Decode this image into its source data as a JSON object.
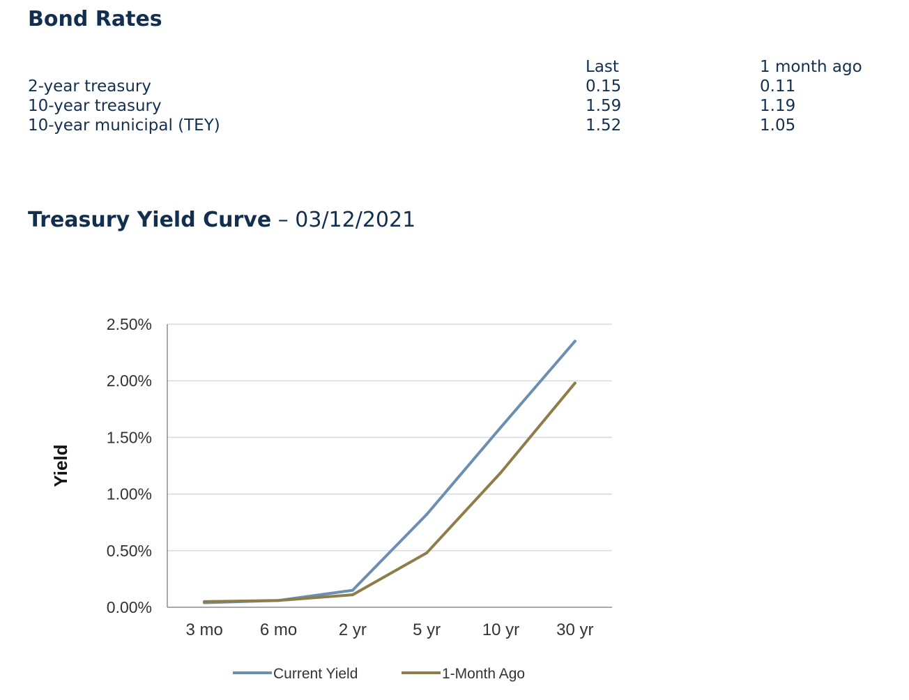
{
  "bond_rates": {
    "title": "Bond Rates",
    "headers": {
      "last": "Last",
      "ago": "1 month ago"
    },
    "rows": [
      {
        "name": "2-year treasury",
        "last": "0.15",
        "ago": "0.11"
      },
      {
        "name": "10-year treasury",
        "last": "1.59",
        "ago": "1.19"
      },
      {
        "name": "10-year municipal (TEY)",
        "last": "1.52",
        "ago": "1.05"
      }
    ]
  },
  "yield_curve": {
    "title": "Treasury Yield Curve",
    "date_text": " – 03/12/2021"
  },
  "chart_data": {
    "type": "line",
    "categories": [
      "3 mo",
      "6 mo",
      "2 yr",
      "5 yr",
      "10 yr",
      "30 yr"
    ],
    "series": [
      {
        "name": "Current Yield",
        "color": "#6b8fb3",
        "values": [
          0.04,
          0.06,
          0.15,
          0.82,
          1.59,
          2.35
        ]
      },
      {
        "name": "1-Month Ago",
        "color": "#8d7d4a",
        "values": [
          0.05,
          0.06,
          0.11,
          0.48,
          1.19,
          1.98
        ]
      }
    ],
    "ylabel": "Yield",
    "xlabel": "",
    "ylim": [
      0,
      2.5
    ],
    "yticks": [
      "0.00%",
      "0.50%",
      "1.00%",
      "1.50%",
      "2.00%",
      "2.50%"
    ],
    "grid": true,
    "legend": "bottom"
  }
}
